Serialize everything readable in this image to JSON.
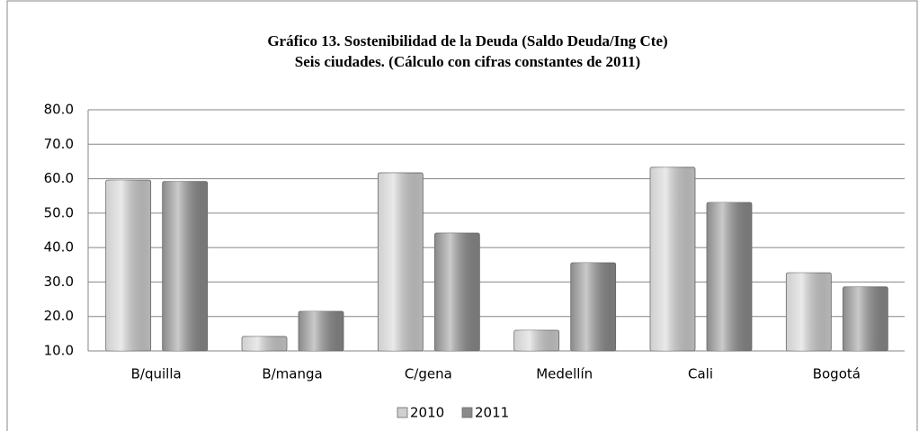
{
  "chart_data": {
    "type": "bar",
    "title": "Gráfico 13.  Sostenibilidad de la Deuda (Saldo Deuda/Ing Cte)",
    "subtitle": "Seis  ciudades. (Cálculo con cifras constantes de 2011)",
    "categories": [
      "B/quilla",
      "B/manga",
      "C/gena",
      "Medellín",
      "Cali",
      "Bogotá"
    ],
    "series": [
      {
        "name": "2010",
        "color": "#cfcfcf",
        "values": [
          59.6,
          14.2,
          61.7,
          16.0,
          63.3,
          32.7
        ]
      },
      {
        "name": "2011",
        "color": "#8a8a8a",
        "values": [
          59.2,
          21.5,
          44.2,
          35.6,
          53.1,
          28.6
        ]
      }
    ],
    "ylim": [
      10,
      80
    ],
    "yticks": [
      {
        "value": 10,
        "label": "10.0"
      },
      {
        "value": 20,
        "label": "20.0"
      },
      {
        "value": 30,
        "label": "30.0"
      },
      {
        "value": 40,
        "label": "40.0"
      },
      {
        "value": 50,
        "label": "50.0"
      },
      {
        "value": 60,
        "label": "60.0"
      },
      {
        "value": 70,
        "label": "70.0"
      },
      {
        "value": 80,
        "label": "80.0"
      }
    ],
    "grid": true,
    "legend": "bottom"
  }
}
